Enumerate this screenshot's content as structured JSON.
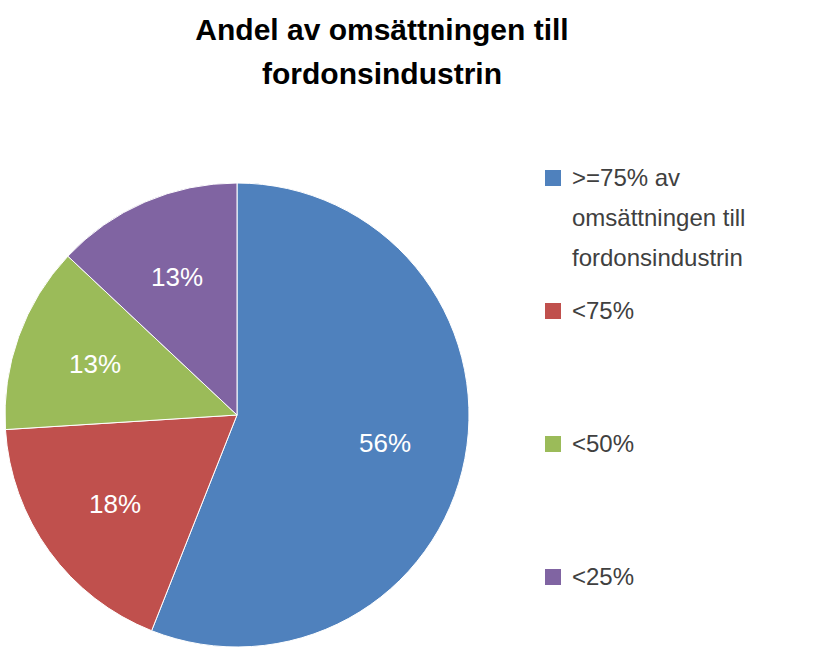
{
  "chart_data": {
    "type": "pie",
    "title": "Andel av omsättningen till fordonsindustrin",
    "categories": [
      ">=75% av omsättningen till fordonsindustrin",
      "<75%",
      "<50%",
      "<25%"
    ],
    "values": [
      56,
      18,
      13,
      13
    ],
    "value_labels": [
      "56%",
      "18%",
      "13%",
      "13%"
    ],
    "colors": [
      "#4f81bd",
      "#c0504d",
      "#9bbb59",
      "#8064a2"
    ],
    "data_labels": true,
    "legend": "right"
  }
}
